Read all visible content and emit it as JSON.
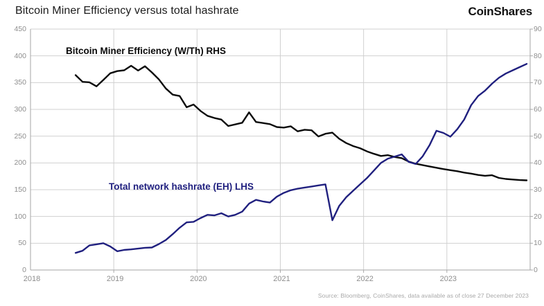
{
  "header": {
    "title": "Bitcoin Miner Efficiency versus total hashrate",
    "logo": "CoinShares"
  },
  "footer": {
    "source": "Source: Bloomberg, CoinShares, data available as of close 27 December 2023"
  },
  "colors": {
    "efficiency_line": "#0a0a0a",
    "hashrate_line": "#20207f",
    "grid": "#d0d0d0",
    "axis": "#a6a6a6",
    "tick_label": "#8e8e8e",
    "title": "#1b1b1b",
    "source": "#a8a8a8"
  },
  "chart_data": {
    "type": "line",
    "title": "Bitcoin Miner Efficiency versus total hashrate",
    "grid": true,
    "legend_position": "inline-labels",
    "x_axis": {
      "range": [
        2018,
        2024
      ],
      "gridline_years": [
        2019,
        2020,
        2021,
        2022,
        2023
      ],
      "tick_positions": [
        2018,
        2019,
        2020,
        2021,
        2022,
        2023
      ],
      "tick_labels": [
        "2018",
        "2019",
        "2020",
        "2021",
        "2022",
        "2023"
      ]
    },
    "left_axis": {
      "min": 0,
      "max": 450,
      "step": 50,
      "ticks": [
        0,
        50,
        100,
        150,
        200,
        250,
        300,
        350,
        400,
        450
      ],
      "units": "EH"
    },
    "right_axis": {
      "min": 0,
      "max": 90,
      "step": 10,
      "ticks": [
        0,
        10,
        20,
        30,
        40,
        50,
        60,
        70,
        80,
        90
      ],
      "units": "W/Th"
    },
    "x": [
      2018.542,
      2018.625,
      2018.708,
      2018.792,
      2018.875,
      2018.958,
      2019.042,
      2019.125,
      2019.208,
      2019.292,
      2019.375,
      2019.458,
      2019.542,
      2019.625,
      2019.708,
      2019.792,
      2019.875,
      2019.958,
      2020.042,
      2020.125,
      2020.208,
      2020.292,
      2020.375,
      2020.458,
      2020.542,
      2020.625,
      2020.708,
      2020.792,
      2020.875,
      2020.958,
      2021.042,
      2021.125,
      2021.208,
      2021.292,
      2021.375,
      2021.458,
      2021.542,
      2021.625,
      2021.708,
      2021.792,
      2021.875,
      2021.958,
      2022.042,
      2022.125,
      2022.208,
      2022.292,
      2022.375,
      2022.458,
      2022.542,
      2022.625,
      2022.708,
      2022.792,
      2022.875,
      2022.958,
      2023.042,
      2023.125,
      2023.208,
      2023.292,
      2023.375,
      2023.458,
      2023.542,
      2023.625,
      2023.708,
      2023.792,
      2023.875,
      2023.958
    ],
    "series": [
      {
        "name": "Bitcoin Miner Efficiency (W/Th) RHS",
        "axis": "right",
        "color": "#0a0a0a",
        "values": [
          72.8,
          70.3,
          70.1,
          68.6,
          71.0,
          73.5,
          74.3,
          74.6,
          76.3,
          74.5,
          76.1,
          73.8,
          71.2,
          67.8,
          65.5,
          65.0,
          60.8,
          61.8,
          59.4,
          57.6,
          56.8,
          56.2,
          53.8,
          54.4,
          55.0,
          58.9,
          55.3,
          54.9,
          54.5,
          53.4,
          53.2,
          53.7,
          51.8,
          52.4,
          52.2,
          49.9,
          50.9,
          51.3,
          49.0,
          47.4,
          46.3,
          45.5,
          44.3,
          43.4,
          42.6,
          42.9,
          42.2,
          41.8,
          40.5,
          39.7,
          39.2,
          38.7,
          38.2,
          37.7,
          37.3,
          36.9,
          36.4,
          36.0,
          35.5,
          35.2,
          35.4,
          34.4,
          34.0,
          33.8,
          33.6,
          33.5
        ]
      },
      {
        "name": "Total network hashrate (EH) LHS",
        "axis": "left",
        "color": "#20207f",
        "values": [
          32,
          36,
          46,
          48,
          50,
          44,
          35,
          37.5,
          38.5,
          40,
          41.5,
          42,
          48.5,
          56,
          67,
          79,
          89,
          90,
          97,
          103,
          102,
          106,
          100,
          103,
          109,
          124,
          131,
          128,
          126,
          137,
          144,
          149,
          152,
          154,
          156,
          158,
          160,
          93,
          120,
          136,
          148,
          160,
          172,
          186,
          200,
          208,
          212,
          216,
          202,
          198,
          212,
          233,
          260,
          256,
          249,
          263,
          281,
          308,
          325,
          335,
          348,
          359,
          367,
          373,
          379,
          385
        ]
      }
    ]
  }
}
